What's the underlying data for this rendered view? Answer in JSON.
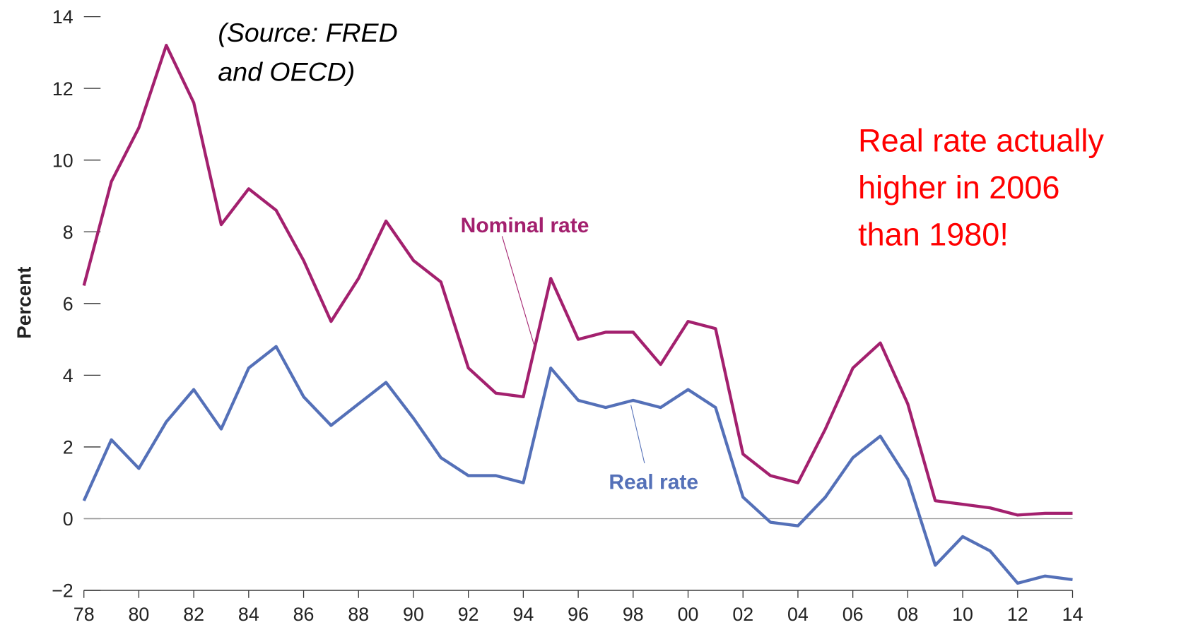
{
  "chart_data": {
    "type": "line",
    "y_label": "Percent",
    "source_note": [
      "(Source: FRED",
      "and OECD)"
    ],
    "annotation": [
      "Real rate actually",
      "higher in 2006",
      "than 1980!"
    ],
    "categories": [
      "78",
      null,
      "80",
      null,
      "82",
      null,
      "84",
      null,
      "86",
      null,
      "88",
      null,
      "90",
      null,
      "92",
      null,
      "94",
      null,
      "96",
      null,
      "98",
      null,
      "00",
      null,
      "02",
      null,
      "04",
      null,
      "06",
      null,
      "08",
      null,
      "10",
      null,
      "12",
      null,
      "14"
    ],
    "series": [
      {
        "name": "Nominal rate",
        "color": "#a3206e",
        "values": [
          6.5,
          9.4,
          10.9,
          13.2,
          11.6,
          8.2,
          9.2,
          8.6,
          7.2,
          5.5,
          6.7,
          8.3,
          7.2,
          6.6,
          4.2,
          3.5,
          3.4,
          6.7,
          5.0,
          5.2,
          5.2,
          4.3,
          5.5,
          5.3,
          1.8,
          1.2,
          1.0,
          2.5,
          4.2,
          4.9,
          3.2,
          0.5,
          0.4,
          0.3,
          0.1,
          0.15,
          0.15
        ]
      },
      {
        "name": "Real rate",
        "color": "#5470b8",
        "values": [
          0.5,
          2.2,
          1.4,
          2.7,
          3.6,
          2.5,
          4.2,
          4.8,
          3.4,
          2.6,
          3.2,
          3.8,
          2.8,
          1.7,
          1.2,
          1.2,
          1.0,
          4.2,
          3.3,
          3.1,
          3.3,
          3.1,
          3.6,
          3.1,
          0.6,
          -0.1,
          -0.2,
          0.6,
          1.7,
          2.3,
          1.1,
          -1.3,
          -0.5,
          -0.9,
          -1.8,
          -1.6,
          -1.7
        ]
      }
    ],
    "ylim": [
      -2,
      14
    ],
    "yticks": [
      {
        "value": -2,
        "label": "−2"
      },
      0,
      2,
      4,
      6,
      8,
      10,
      12,
      14
    ],
    "zero_line": true
  }
}
